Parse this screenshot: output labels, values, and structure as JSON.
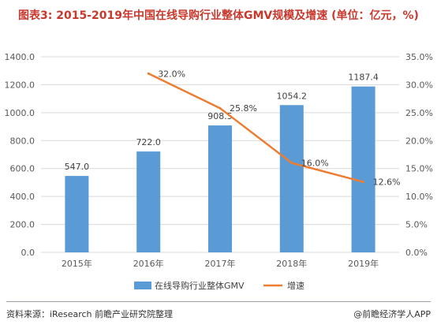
{
  "title": "图表3: 2015-2019年中国在线导购行业整体GMV规模及增速 (单位：亿元，%)",
  "source": "资料来源：iResearch 前瞻产业研究院整理",
  "brand": "@前瞻经济学人APP",
  "colors": {
    "bar": "#5b9bd5",
    "line": "#ed7d31",
    "axis_text": "#595959",
    "grid": "#d9d9d9",
    "title": "#c8382c"
  },
  "chart_data": {
    "type": "bar",
    "categories": [
      "2015年",
      "2016年",
      "2017年",
      "2018年",
      "2019年"
    ],
    "series": [
      {
        "name": "在线导购行业整体GMV",
        "type": "bar",
        "axis": "left",
        "values": [
          547.0,
          722.0,
          908.5,
          1054.2,
          1187.4
        ],
        "labels": [
          "547.0",
          "722.0",
          "908.5",
          "1054.2",
          "1187.4"
        ]
      },
      {
        "name": "增速",
        "type": "line",
        "axis": "right",
        "values": [
          null,
          32.0,
          25.8,
          16.0,
          12.6
        ],
        "labels": [
          null,
          "32.0%",
          "25.8%",
          "16.0%",
          "12.6%"
        ]
      }
    ],
    "left_axis": {
      "min": 0,
      "max": 1400,
      "ticks": [
        "0.0",
        "200.0",
        "400.0",
        "600.0",
        "800.0",
        "1000.0",
        "1200.0",
        "1400.0"
      ]
    },
    "right_axis": {
      "min": 0,
      "max": 35,
      "ticks": [
        "0.0%",
        "5.0%",
        "10.0%",
        "15.0%",
        "20.0%",
        "25.0%",
        "30.0%",
        "35.0%"
      ]
    },
    "grid": true,
    "legend_position": "bottom"
  }
}
